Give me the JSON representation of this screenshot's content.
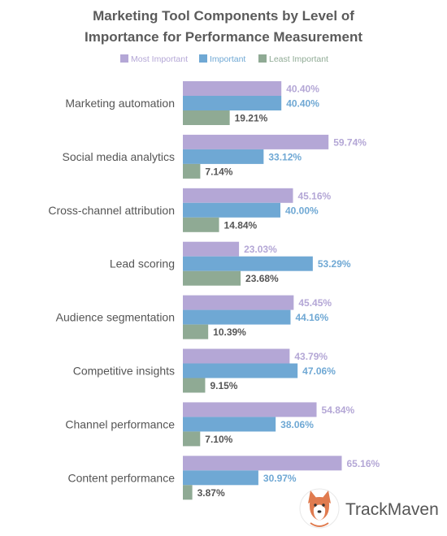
{
  "chart_data": {
    "type": "bar",
    "orientation": "horizontal",
    "title_lines": [
      "Marketing Tool Components by Level of",
      "Importance for Performance Measurement"
    ],
    "categories": [
      "Marketing automation",
      "Social media analytics",
      "Cross-channel attribution",
      "Lead scoring",
      "Audience segmentation",
      "Competitive insights",
      "Channel performance",
      "Content performance"
    ],
    "series": [
      {
        "name": "Most Important",
        "color": "#b4a7d6",
        "values": [
          40.4,
          59.74,
          45.16,
          23.03,
          45.45,
          43.79,
          54.84,
          65.16
        ],
        "labels": [
          "40.40%",
          "59.74%",
          "45.16%",
          "23.03%",
          "45.45%",
          "43.79%",
          "54.84%",
          "65.16%"
        ]
      },
      {
        "name": "Important",
        "color": "#6fa8d4",
        "values": [
          40.4,
          33.12,
          40.0,
          53.29,
          44.16,
          47.06,
          38.06,
          30.97
        ],
        "labels": [
          "40.40%",
          "33.12%",
          "40.00%",
          "53.29%",
          "44.16%",
          "47.06%",
          "38.06%",
          "30.97%"
        ]
      },
      {
        "name": "Least Important",
        "color": "#8faa94",
        "values": [
          19.21,
          7.14,
          14.84,
          23.68,
          10.39,
          9.15,
          7.1,
          3.87
        ],
        "labels": [
          "19.21%",
          "7.14%",
          "14.84%",
          "23.68%",
          "10.39%",
          "9.15%",
          "7.10%",
          "3.87%"
        ]
      }
    ],
    "value_label_colors": [
      "#b4a7d6",
      "#6fa8d4",
      "#555555"
    ],
    "xlim": [
      0,
      100
    ],
    "grid": false,
    "legend_position": "top-center"
  },
  "brand": {
    "name": "TrackMaven",
    "logo_icon": "corgi-mascot-icon"
  }
}
